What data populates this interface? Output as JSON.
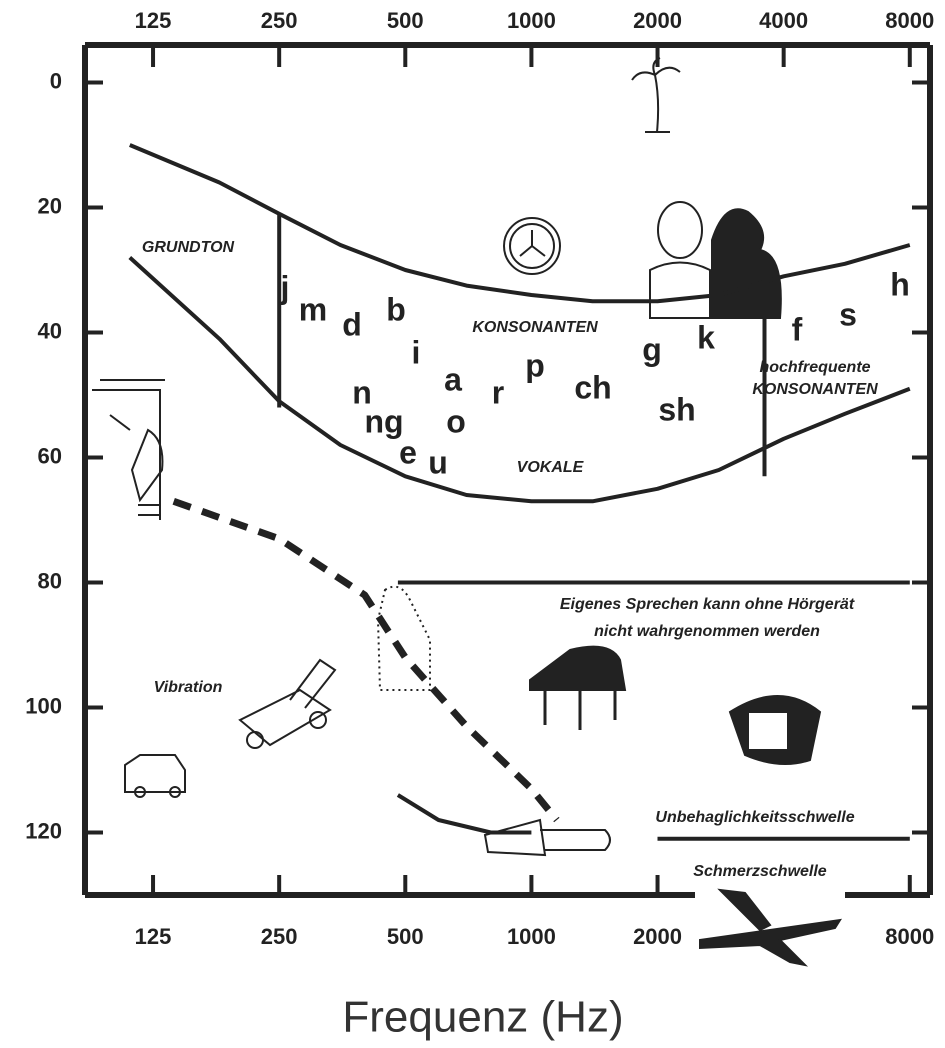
{
  "chart_data": {
    "type": "audiogram",
    "xlabel": "Frequenz (Hz)",
    "log_x": true,
    "xlim": [
      86,
      8940
    ],
    "xticks": [
      125,
      250,
      500,
      1000,
      2000,
      4000,
      8000
    ],
    "x2ticks": [
      125,
      250,
      500,
      1000,
      2000,
      8000
    ],
    "ylim": [
      -6,
      130
    ],
    "yticks": [
      0,
      20,
      40,
      60,
      80,
      100,
      120
    ],
    "color": "#222222",
    "lines": [
      {
        "x": [
          110,
          180,
          250,
          350,
          500,
          700,
          1000,
          1400,
          2000,
          2800,
          4000,
          5600,
          8000
        ],
        "y": [
          10,
          16,
          21,
          26,
          30,
          32.5,
          34,
          35,
          35,
          34,
          31,
          29,
          26
        ],
        "style": "solid"
      },
      {
        "x": [
          110,
          180,
          250,
          350,
          500,
          700,
          1000,
          1400,
          2000,
          2800,
          4000,
          5600,
          8000
        ],
        "y": [
          28,
          41,
          51,
          58,
          63,
          66,
          67,
          67,
          65,
          62,
          57,
          53,
          49
        ],
        "style": "solid"
      },
      {
        "x": [
          250,
          250
        ],
        "y": [
          21,
          52
        ],
        "style": "solid"
      },
      {
        "x": [
          3600,
          3600
        ],
        "y": [
          32,
          63
        ],
        "style": "solid"
      },
      {
        "x": [
          140,
          250,
          400,
          500,
          700,
          1000,
          1150
        ],
        "y": [
          67,
          73,
          82,
          92,
          103,
          113,
          118
        ],
        "style": "dashed"
      },
      {
        "x": [
          480,
          8000
        ],
        "y": [
          80,
          80
        ],
        "style": "solid"
      },
      {
        "x": [
          480,
          600,
          800,
          1000
        ],
        "y": [
          114,
          118,
          120,
          120
        ],
        "style": "solid"
      },
      {
        "x": [
          2000,
          8000
        ],
        "y": [
          121,
          121
        ],
        "style": "solid"
      }
    ],
    "annotations": [
      "GRUNDTON",
      "KONSONANTEN",
      "VOKALE",
      "hochfrequente",
      "KONSONANTEN",
      "Vibration",
      "Eigenes Sprechen kann ohne Hörgerät",
      "nicht wahrgenommen werden",
      "Unbehaglichkeitsschwelle",
      "Schmerzschwelle"
    ],
    "phonemes": [
      "j",
      "m",
      "d",
      "b",
      "i",
      "n",
      "ng",
      "e",
      "u",
      "a",
      "o",
      "r",
      "p",
      "ch",
      "g",
      "k",
      "sh",
      "f",
      "s",
      "h"
    ]
  }
}
